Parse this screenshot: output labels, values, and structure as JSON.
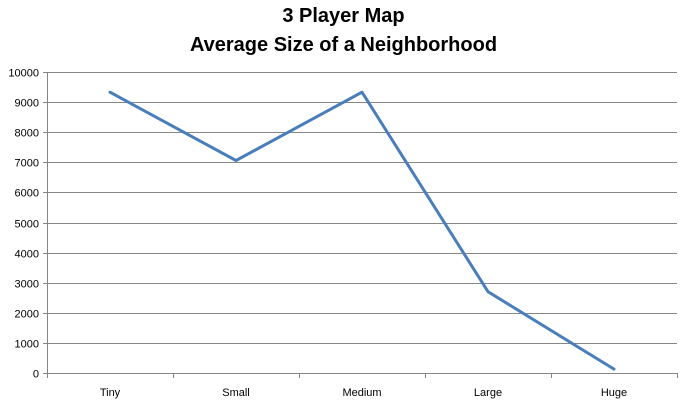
{
  "chart_data": {
    "type": "line",
    "title": [
      "3 Player Map",
      "Average Size of a Neighborhood"
    ],
    "xlabel": "",
    "ylabel": "",
    "categories": [
      "Tiny",
      "Small",
      "Medium",
      "Large",
      "Huge"
    ],
    "series": [
      {
        "values": [
          9330,
          7060,
          9330,
          2700,
          130
        ],
        "color": "#4a7ebb"
      }
    ],
    "ylim": [
      0,
      10000
    ],
    "yticks": [
      0,
      1000,
      2000,
      3000,
      4000,
      5000,
      6000,
      7000,
      8000,
      9000,
      10000
    ],
    "grid": true,
    "legend": "none"
  }
}
